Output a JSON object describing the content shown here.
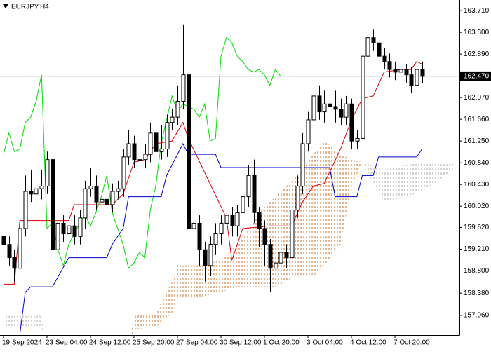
{
  "chart_data": {
    "type": "candlestick",
    "title": "EURJPY,H4",
    "xlim": [
      -0.645,
      83.87
    ],
    "ylim": [
      157.59,
      163.91
    ],
    "xticks": [
      {
        "value": 0,
        "label": "19 Sep 2024"
      },
      {
        "value": 8,
        "label": "23 Sep 04:00"
      },
      {
        "value": 16,
        "label": "24 Sep 12:00"
      },
      {
        "value": 24,
        "label": "25 Sep 20:00"
      },
      {
        "value": 32,
        "label": "27 Sep 04:00"
      },
      {
        "value": 40,
        "label": "30 Sep 12:00"
      },
      {
        "value": 48,
        "label": "1 Oct 20:00"
      },
      {
        "value": 56,
        "label": "3 Oct 04:00"
      },
      {
        "value": 64,
        "label": "4 Oct 12:00"
      },
      {
        "value": 72,
        "label": "7 Oct 20:00"
      }
    ],
    "yticks": [
      {
        "value": 163.71,
        "label": "163.710"
      },
      {
        "value": 163.3,
        "label": "163.300"
      },
      {
        "value": 162.89,
        "label": "162.890"
      },
      {
        "value": 162.07,
        "label": "162.070"
      },
      {
        "value": 161.66,
        "label": "161.660"
      },
      {
        "value": 161.25,
        "label": "161.250"
      },
      {
        "value": 160.84,
        "label": "160.840"
      },
      {
        "value": 160.43,
        "label": "160.430"
      },
      {
        "value": 160.02,
        "label": "160.020"
      },
      {
        "value": 159.62,
        "label": "159.620"
      },
      {
        "value": 159.21,
        "label": "159.210"
      },
      {
        "value": 158.8,
        "label": "158.800"
      },
      {
        "value": 158.38,
        "label": "158.380"
      },
      {
        "value": 157.96,
        "label": "157.960"
      }
    ],
    "last_price": {
      "value": 162.47,
      "label": "162.470",
      "color": "#c0c0c0"
    },
    "up_color": "#ffffff",
    "down_color": "#000000",
    "open": [
      159.45,
      159.3,
      159.05,
      158.85,
      159.6,
      160.3,
      160.25,
      160.35,
      160.4,
      160.9,
      159.2,
      159.7,
      159.5,
      159.65,
      159.45,
      159.8,
      160.35,
      160.4,
      160.1,
      160.15,
      160.05,
      160.3,
      160.35,
      160.95,
      161.2,
      160.9,
      160.9,
      161.0,
      161.4,
      161.05,
      161.1,
      161.6,
      161.7,
      162.0,
      162.5,
      159.6,
      159.7,
      159.2,
      158.9,
      159.3,
      159.5,
      159.7,
      159.85,
      159.65,
      159.9,
      160.2,
      160.6,
      159.9,
      159.6,
      159.3,
      158.85,
      158.95,
      159.15,
      159.05,
      159.95,
      160.4,
      161.2,
      161.65,
      162.1,
      161.8,
      161.95,
      161.9,
      161.85,
      161.7,
      161.95,
      161.25,
      161.3,
      162.85,
      163.2,
      163.1,
      162.85,
      162.75,
      162.6,
      162.55,
      162.6,
      162.5,
      162.3,
      162.6
    ],
    "high": [
      159.6,
      159.45,
      159.2,
      160.2,
      160.6,
      160.7,
      160.55,
      160.7,
      161.05,
      161.0,
      159.9,
      159.85,
      159.8,
      159.85,
      159.95,
      160.5,
      160.75,
      160.6,
      160.35,
      160.3,
      160.45,
      160.5,
      161.1,
      161.45,
      161.35,
      161.3,
      161.2,
      161.6,
      161.5,
      161.55,
      161.75,
      161.85,
      162.3,
      163.45,
      162.6,
      159.85,
      159.85,
      159.35,
      159.45,
      159.7,
      159.85,
      160.05,
      160.0,
      160.05,
      160.4,
      160.8,
      160.9,
      160.0,
      159.75,
      159.4,
      159.1,
      159.3,
      159.3,
      160.15,
      160.6,
      161.4,
      161.8,
      162.5,
      162.3,
      162.2,
      162.45,
      162.2,
      162.05,
      162.1,
      162.05,
      161.45,
      163.0,
      163.4,
      163.35,
      163.55,
      163.0,
      162.9,
      162.75,
      162.75,
      162.7,
      162.65,
      162.7,
      162.75
    ],
    "low": [
      159.15,
      158.9,
      158.6,
      158.7,
      159.45,
      160.1,
      160.1,
      160.15,
      160.25,
      159.05,
      159.0,
      159.35,
      159.35,
      159.3,
      159.3,
      159.6,
      160.2,
      159.95,
      159.95,
      159.9,
      159.9,
      160.15,
      160.2,
      160.8,
      160.75,
      160.75,
      160.75,
      160.85,
      160.9,
      160.9,
      160.95,
      161.45,
      161.55,
      161.85,
      159.45,
      159.4,
      158.9,
      158.6,
      158.7,
      159.1,
      159.3,
      159.5,
      159.45,
      159.45,
      159.7,
      160.0,
      159.7,
      159.25,
      158.9,
      158.4,
      158.7,
      158.75,
      158.85,
      158.9,
      159.8,
      160.25,
      161.05,
      161.5,
      161.65,
      161.6,
      161.45,
      161.6,
      161.55,
      161.55,
      161.1,
      161.1,
      161.15,
      162.7,
      162.95,
      162.7,
      162.6,
      162.45,
      162.4,
      162.4,
      162.35,
      162.15,
      161.95,
      162.35
    ],
    "close": [
      159.3,
      159.05,
      158.85,
      159.6,
      160.3,
      160.25,
      160.35,
      160.4,
      160.9,
      159.2,
      159.7,
      159.5,
      159.65,
      159.45,
      159.8,
      160.35,
      160.4,
      160.1,
      160.15,
      160.05,
      160.3,
      160.35,
      160.95,
      161.2,
      160.9,
      160.9,
      161.0,
      161.4,
      161.05,
      161.1,
      161.6,
      161.7,
      162.0,
      162.5,
      159.6,
      159.7,
      159.2,
      158.9,
      159.3,
      159.5,
      159.7,
      159.85,
      159.65,
      159.9,
      160.2,
      160.6,
      159.9,
      159.6,
      159.3,
      158.85,
      158.95,
      159.15,
      159.05,
      159.95,
      160.4,
      161.2,
      161.65,
      162.1,
      161.8,
      161.95,
      161.9,
      161.85,
      161.7,
      161.95,
      161.25,
      161.3,
      162.85,
      163.2,
      163.1,
      162.85,
      162.75,
      162.6,
      162.55,
      162.6,
      162.5,
      162.3,
      162.6,
      162.47
    ],
    "tenkan": {
      "color": "#e00000",
      "x": [
        0,
        2,
        3,
        12,
        13,
        20,
        22,
        24,
        26,
        28,
        31,
        33,
        34,
        41,
        42,
        44,
        49,
        53,
        55,
        57,
        59,
        62,
        64,
        66,
        68,
        70,
        73,
        75,
        76,
        77
      ],
      "values": [
        158.55,
        158.55,
        159.75,
        159.75,
        160.05,
        160.05,
        160.25,
        160.85,
        160.9,
        161.2,
        161.25,
        161.6,
        161.3,
        159.8,
        159.0,
        159.6,
        159.65,
        159.65,
        160.1,
        160.4,
        160.45,
        161.1,
        161.65,
        162.05,
        162.1,
        162.55,
        162.6,
        162.6,
        162.75,
        162.7
      ]
    },
    "kijun": {
      "color": "#0000cc",
      "x": [
        3,
        4,
        5,
        9,
        12,
        19,
        20,
        22,
        23,
        29,
        30,
        33,
        34,
        39,
        40,
        60,
        61,
        65,
        66,
        68,
        69,
        76,
        77
      ],
      "values": [
        157.6,
        158.4,
        158.5,
        158.5,
        159.05,
        159.05,
        159.3,
        159.6,
        160.2,
        160.2,
        160.6,
        161.2,
        161.0,
        161.0,
        160.75,
        160.75,
        160.2,
        160.2,
        160.6,
        160.6,
        160.95,
        160.95,
        161.1
      ]
    },
    "chikou": {
      "color": "#00dd00",
      "values": [
        161.0,
        161.4,
        161.05,
        161.1,
        161.6,
        161.7,
        162.0,
        162.5,
        159.6,
        159.7,
        159.2,
        158.9,
        159.3,
        159.5,
        159.7,
        159.85,
        159.65,
        159.9,
        160.2,
        160.6,
        159.9,
        159.6,
        159.3,
        158.85,
        158.95,
        159.15,
        159.05,
        159.95,
        160.4,
        161.2,
        161.65,
        162.1,
        161.8,
        161.95,
        161.9,
        161.85,
        161.7,
        161.95,
        161.25,
        161.3,
        162.85,
        163.2,
        163.1,
        162.85,
        162.75,
        162.6,
        162.55,
        162.6,
        162.5,
        162.3,
        162.6,
        162.47
      ]
    },
    "cloud": {
      "up_color": "#d2691e",
      "down_color": "#a9a9a9",
      "x": [
        0,
        7,
        8,
        23,
        24,
        28,
        31,
        32,
        36,
        40,
        43,
        47,
        50,
        54,
        57,
        59,
        62,
        64,
        66,
        70,
        74,
        77,
        80,
        83
      ],
      "span_a": [
        157.75,
        157.75,
        157.3,
        157.3,
        157.95,
        158.0,
        158.6,
        158.9,
        158.9,
        159.0,
        159.3,
        159.9,
        160.2,
        160.6,
        161.0,
        161.25,
        161.0,
        160.9,
        160.85,
        160.1,
        160.2,
        160.3,
        160.5,
        160.75
      ],
      "span_b": [
        157.95,
        157.95,
        157.4,
        157.4,
        157.7,
        157.75,
        158.0,
        158.3,
        158.3,
        158.4,
        158.5,
        158.5,
        158.5,
        158.7,
        158.7,
        158.9,
        159.3,
        160.4,
        160.85,
        160.7,
        160.8,
        160.85,
        160.85,
        160.85
      ]
    }
  }
}
